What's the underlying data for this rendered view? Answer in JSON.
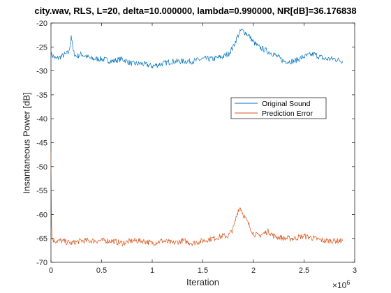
{
  "chart_data": {
    "type": "line",
    "title": "city.wav, RLS, L=20, delta=10.000000, lambda=0.990000, NR[dB]=36.176838",
    "xlabel": "Iteration",
    "ylabel": "Insantaneous Power [dB]",
    "x_exponent_base": "×10",
    "x_exponent_power": "6",
    "xlim": [
      0,
      3
    ],
    "ylim": [
      -70,
      -20
    ],
    "xticks": [
      0,
      0.5,
      1,
      1.5,
      2,
      2.5,
      3
    ],
    "xtick_labels": [
      "0",
      "0.5",
      "1",
      "1.5",
      "2",
      "2.5",
      "3"
    ],
    "yticks": [
      -70,
      -65,
      -60,
      -55,
      -50,
      -45,
      -40,
      -35,
      -30,
      -25,
      -20
    ],
    "ytick_labels": [
      "-70",
      "-65",
      "-60",
      "-55",
      "-50",
      "-45",
      "-40",
      "-35",
      "-30",
      "-25",
      "-20"
    ],
    "grid": false,
    "legend_position": "center-right",
    "colors": {
      "original": "#0072BD",
      "error": "#D95319"
    },
    "series": [
      {
        "name": "Original Sound",
        "x": [
          0,
          0.05,
          0.1,
          0.15,
          0.18,
          0.2,
          0.22,
          0.25,
          0.3,
          0.4,
          0.5,
          0.6,
          0.7,
          0.8,
          0.9,
          1.0,
          1.1,
          1.2,
          1.3,
          1.4,
          1.5,
          1.6,
          1.7,
          1.75,
          1.8,
          1.85,
          1.88,
          1.92,
          1.95,
          2.0,
          2.05,
          2.1,
          2.2,
          2.3,
          2.4,
          2.5,
          2.6,
          2.7,
          2.8,
          2.88
        ],
        "y": [
          -26.5,
          -27.5,
          -27,
          -26.5,
          -26,
          -22.5,
          -26,
          -27,
          -26.5,
          -27.5,
          -27.5,
          -28,
          -27.5,
          -28.5,
          -28.5,
          -29,
          -28.5,
          -28,
          -28,
          -28,
          -27.5,
          -27.5,
          -27,
          -26.5,
          -25,
          -22.5,
          -21.5,
          -22,
          -22.5,
          -24,
          -25,
          -25.5,
          -26.5,
          -28,
          -28,
          -27,
          -26.5,
          -27.5,
          -27.5,
          -28
        ]
      },
      {
        "name": "Prediction Error",
        "x": [
          0,
          0.005,
          0.01,
          0.03,
          0.1,
          0.2,
          0.3,
          0.4,
          0.5,
          0.6,
          0.7,
          0.8,
          0.9,
          1.0,
          1.1,
          1.2,
          1.3,
          1.4,
          1.5,
          1.6,
          1.7,
          1.75,
          1.8,
          1.85,
          1.87,
          1.9,
          1.95,
          2.0,
          2.05,
          2.1,
          2.15,
          2.2,
          2.3,
          2.4,
          2.5,
          2.6,
          2.7,
          2.8,
          2.88
        ],
        "y": [
          -47,
          -60,
          -65,
          -65.5,
          -65.5,
          -66,
          -65.5,
          -65.5,
          -65.5,
          -65.5,
          -66,
          -65.5,
          -65.5,
          -66,
          -65.5,
          -66,
          -65.5,
          -66,
          -65.5,
          -65,
          -64.5,
          -64.5,
          -63,
          -59,
          -58.5,
          -60,
          -62,
          -64,
          -64.5,
          -64,
          -63.5,
          -64.5,
          -65,
          -65,
          -64.5,
          -65,
          -65.5,
          -65.5,
          -65.5
        ]
      }
    ]
  }
}
